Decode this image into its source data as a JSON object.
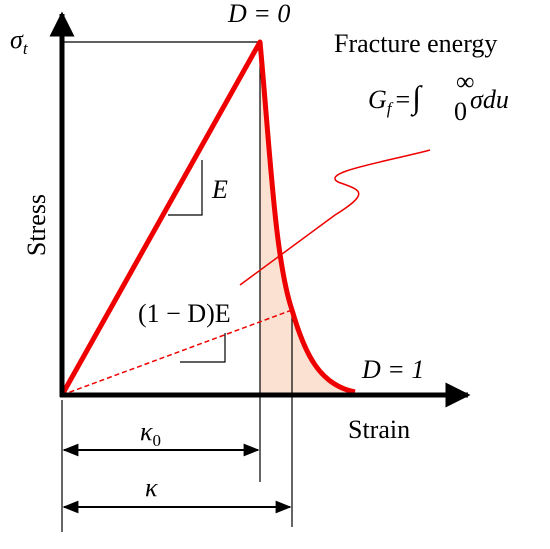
{
  "labels": {
    "sigma": "σ",
    "sigma_sub": "t",
    "peak": "D = 0",
    "fracture": "Fracture energy",
    "gf": {
      "g": "G",
      "sub": "f",
      "eq": "=",
      "int": "∫",
      "lower": "0",
      "upper": "∞",
      "body": "σdu"
    },
    "slope": "E",
    "stress": "Stress",
    "damaged": "(1 − D)E",
    "end": "D = 1",
    "strain": "Strain",
    "kappa0": {
      "k": "κ",
      "sub": "0"
    },
    "kappa": "κ"
  }
}
